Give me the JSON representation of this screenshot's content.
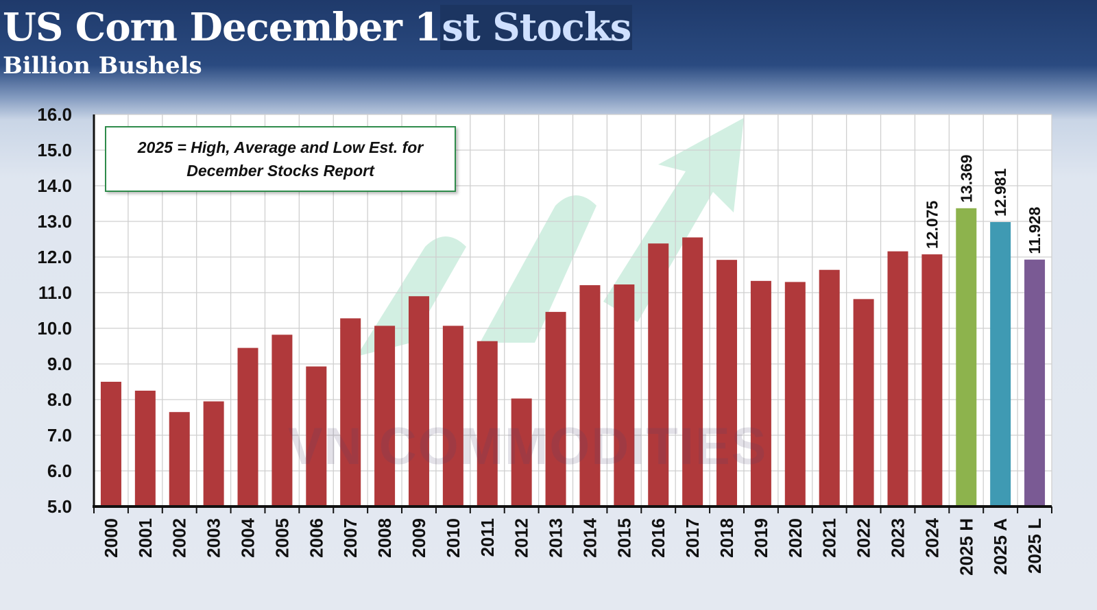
{
  "header": {
    "title_main": "US Corn December 1",
    "title_highlight": "st Stocks",
    "subtitle": "Billion Bushels"
  },
  "note": "2025 = High, Average and Low Est. for December Stocks Report",
  "watermark": "VN COMMODITIES",
  "colors": {
    "bar": "#b0393b",
    "high": "#8db34d",
    "average": "#3f9ab3",
    "low": "#7a5a94",
    "arrow": "#bfe8d6"
  },
  "chart_data": {
    "type": "bar",
    "title": "US Corn December 1st Stocks",
    "subtitle": "Billion Bushels",
    "ylim": [
      5,
      16
    ],
    "yticks": [
      "5.0",
      "6.0",
      "7.0",
      "8.0",
      "9.0",
      "10.0",
      "11.0",
      "12.0",
      "13.0",
      "14.0",
      "15.0",
      "16.0"
    ],
    "grid": true,
    "categories": [
      "2000",
      "2001",
      "2002",
      "2003",
      "2004",
      "2005",
      "2006",
      "2007",
      "2008",
      "2009",
      "2010",
      "2011",
      "2012",
      "2013",
      "2014",
      "2015",
      "2016",
      "2017",
      "2018",
      "2019",
      "2020",
      "2021",
      "2022",
      "2023",
      "2024",
      "2025 H",
      "2025 A",
      "2025 L"
    ],
    "values": [
      8.5,
      8.25,
      7.65,
      7.95,
      9.45,
      9.82,
      8.93,
      10.28,
      10.07,
      10.9,
      10.07,
      9.64,
      8.03,
      10.46,
      11.21,
      11.23,
      12.38,
      12.55,
      11.92,
      11.33,
      11.3,
      11.64,
      10.82,
      12.16,
      12.075,
      13.369,
      12.981,
      11.928
    ],
    "data_labels": {
      "24": "12.075",
      "25": "13.369",
      "26": "12.981",
      "27": "11.928"
    },
    "bar_color_keys": [
      "bar",
      "bar",
      "bar",
      "bar",
      "bar",
      "bar",
      "bar",
      "bar",
      "bar",
      "bar",
      "bar",
      "bar",
      "bar",
      "bar",
      "bar",
      "bar",
      "bar",
      "bar",
      "bar",
      "bar",
      "bar",
      "bar",
      "bar",
      "bar",
      "bar",
      "high",
      "average",
      "low"
    ]
  }
}
